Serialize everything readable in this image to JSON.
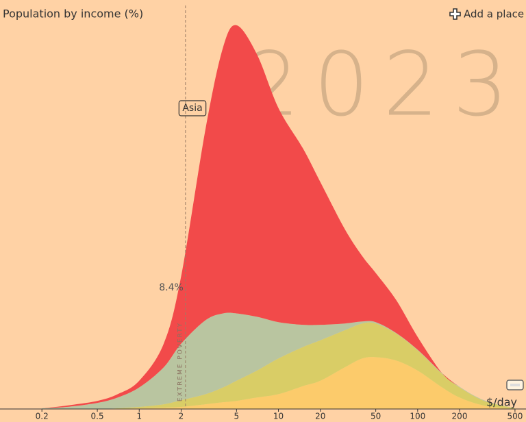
{
  "chart_data": {
    "type": "area",
    "title": "Population by income (%)",
    "add_place": "Add a place",
    "year": "2023",
    "x_label": "$/day",
    "xscale": "log",
    "xlim": [
      0.1,
      600
    ],
    "ylim": [
      0,
      580
    ],
    "xticks": [
      0.2,
      0.5,
      1,
      2,
      5,
      10,
      20,
      50,
      100,
      200,
      500
    ],
    "poverty_line": 2.15,
    "poverty_label": "EXTREME POVERTY",
    "poverty_share": "8.4%",
    "x": [
      0.2,
      0.3,
      0.5,
      0.7,
      1,
      1.5,
      2,
      3,
      4,
      5,
      7,
      10,
      15,
      20,
      30,
      40,
      50,
      70,
      100,
      150,
      200,
      300,
      500
    ],
    "series": [
      {
        "color": "#fccb6b",
        "values": [
          0,
          0,
          0,
          0,
          1,
          2,
          3,
          7,
          10,
          12,
          17,
          22,
          34,
          42,
          62,
          75,
          77,
          72,
          57,
          32,
          17,
          5,
          0
        ]
      },
      {
        "color": "#d9cd66",
        "values": [
          0,
          0,
          0,
          1,
          2,
          5,
          10,
          15,
          22,
          30,
          40,
          53,
          58,
          60,
          55,
          52,
          50,
          40,
          30,
          20,
          15,
          7,
          1
        ]
      },
      {
        "color": "#b9c5a0",
        "values": [
          1,
          3,
          9,
          16,
          29,
          55,
          84,
          110,
          110,
          100,
          80,
          54,
          33,
          23,
          10,
          3,
          2,
          1,
          1,
          1,
          1,
          1,
          0
        ]
      },
      {
        "name": "Asia",
        "color": "#f24a4a",
        "values": [
          0,
          2,
          3,
          5,
          10,
          35,
          100,
          285,
          395,
          428,
          390,
          318,
          262,
          212,
          140,
          97,
          73,
          49,
          19,
          0,
          0,
          0,
          0
        ]
      }
    ]
  }
}
